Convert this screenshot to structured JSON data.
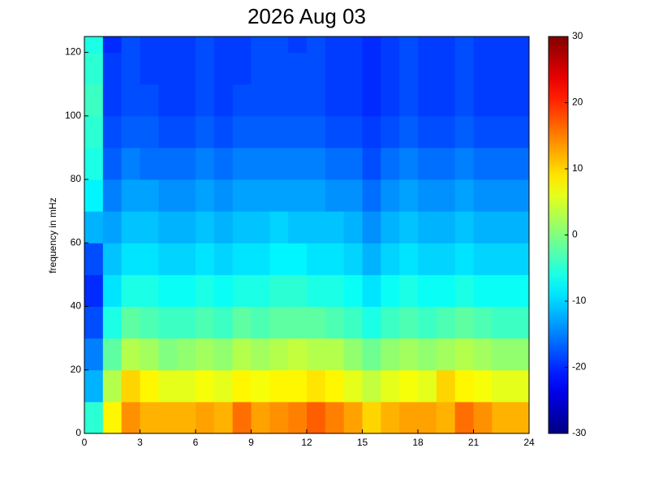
{
  "chart_data": {
    "type": "heatmap",
    "title": "2026 Aug 03",
    "y_label": "frequency in mHz",
    "x": [
      0,
      1,
      2,
      3,
      4,
      5,
      6,
      7,
      8,
      9,
      10,
      11,
      12,
      13,
      14,
      15,
      16,
      17,
      18,
      19,
      20,
      21,
      22,
      23,
      24
    ],
    "y": [
      0,
      10,
      20,
      30,
      40,
      50,
      60,
      70,
      80,
      90,
      100,
      110,
      120,
      125
    ],
    "z": [
      [
        -5,
        8,
        14,
        12,
        12,
        12,
        13,
        12,
        16,
        13,
        14,
        15,
        17,
        15,
        13,
        10,
        12,
        13,
        13,
        12,
        16,
        14,
        12,
        12
      ],
      [
        -12,
        3,
        10,
        8,
        6,
        6,
        7,
        6,
        8,
        7,
        8,
        8,
        9,
        8,
        6,
        4,
        6,
        7,
        6,
        10,
        8,
        7,
        6,
        6
      ],
      [
        -15,
        -2,
        3,
        2,
        0,
        1,
        2,
        1,
        3,
        2,
        3,
        4,
        3,
        3,
        1,
        -1,
        1,
        2,
        1,
        2,
        3,
        2,
        1,
        1
      ],
      [
        -18,
        -6,
        -2,
        -3,
        -4,
        -4,
        -3,
        -4,
        -2,
        -3,
        -2,
        -2,
        -2,
        -3,
        -4,
        -6,
        -4,
        -3,
        -4,
        -3,
        -2,
        -3,
        -4,
        -4
      ],
      [
        -20,
        -9,
        -6,
        -6,
        -7,
        -7,
        -6,
        -7,
        -6,
        -6,
        -5,
        -5,
        -6,
        -6,
        -7,
        -9,
        -7,
        -6,
        -7,
        -7,
        -6,
        -7,
        -7,
        -7
      ],
      [
        -18,
        -11,
        -9,
        -9,
        -10,
        -10,
        -9,
        -10,
        -9,
        -9,
        -8,
        -8,
        -9,
        -9,
        -10,
        -12,
        -10,
        -9,
        -10,
        -10,
        -9,
        -10,
        -10,
        -10
      ],
      [
        -12,
        -13,
        -11,
        -11,
        -12,
        -12,
        -11,
        -12,
        -11,
        -11,
        -10,
        -11,
        -11,
        -11,
        -12,
        -14,
        -12,
        -11,
        -12,
        -12,
        -11,
        -12,
        -12,
        -12
      ],
      [
        -8,
        -15,
        -13,
        -13,
        -14,
        -14,
        -13,
        -14,
        -13,
        -13,
        -13,
        -13,
        -13,
        -14,
        -14,
        -16,
        -14,
        -13,
        -14,
        -14,
        -13,
        -14,
        -14,
        -14
      ],
      [
        -6,
        -17,
        -15,
        -16,
        -16,
        -16,
        -15,
        -16,
        -15,
        -15,
        -15,
        -15,
        -15,
        -16,
        -16,
        -18,
        -16,
        -15,
        -16,
        -16,
        -15,
        -16,
        -16,
        -16
      ],
      [
        -5,
        -18,
        -17,
        -17,
        -18,
        -18,
        -17,
        -18,
        -17,
        -17,
        -17,
        -17,
        -17,
        -18,
        -18,
        -19,
        -18,
        -17,
        -18,
        -18,
        -17,
        -18,
        -18,
        -18
      ],
      [
        -4,
        -19,
        -18,
        -18,
        -19,
        -19,
        -18,
        -19,
        -18,
        -18,
        -18,
        -18,
        -18,
        -19,
        -19,
        -20,
        -19,
        -18,
        -19,
        -19,
        -18,
        -19,
        -19,
        -19
      ],
      [
        -5,
        -19,
        -18,
        -19,
        -19,
        -19,
        -18,
        -19,
        -19,
        -18,
        -18,
        -18,
        -18,
        -19,
        -19,
        -20,
        -19,
        -18,
        -19,
        -19,
        -18,
        -19,
        -19,
        -19
      ],
      [
        -6,
        -20,
        -18,
        -19,
        -19,
        -19,
        -18,
        -19,
        -19,
        -18,
        -18,
        -19,
        -18,
        -19,
        -19,
        -20,
        -19,
        -18,
        -19,
        -19,
        -18,
        -19,
        -19,
        -19
      ]
    ],
    "xlim": [
      0,
      24
    ],
    "xticks": [
      0,
      3,
      6,
      9,
      12,
      15,
      18,
      21,
      24
    ],
    "ylim": [
      0,
      125
    ],
    "yticks": [
      0,
      20,
      40,
      60,
      80,
      100,
      120
    ],
    "colormap": "jet",
    "clim": [
      -30,
      30
    ],
    "cticks": [
      -30,
      -20,
      -10,
      0,
      10,
      20,
      30
    ]
  }
}
